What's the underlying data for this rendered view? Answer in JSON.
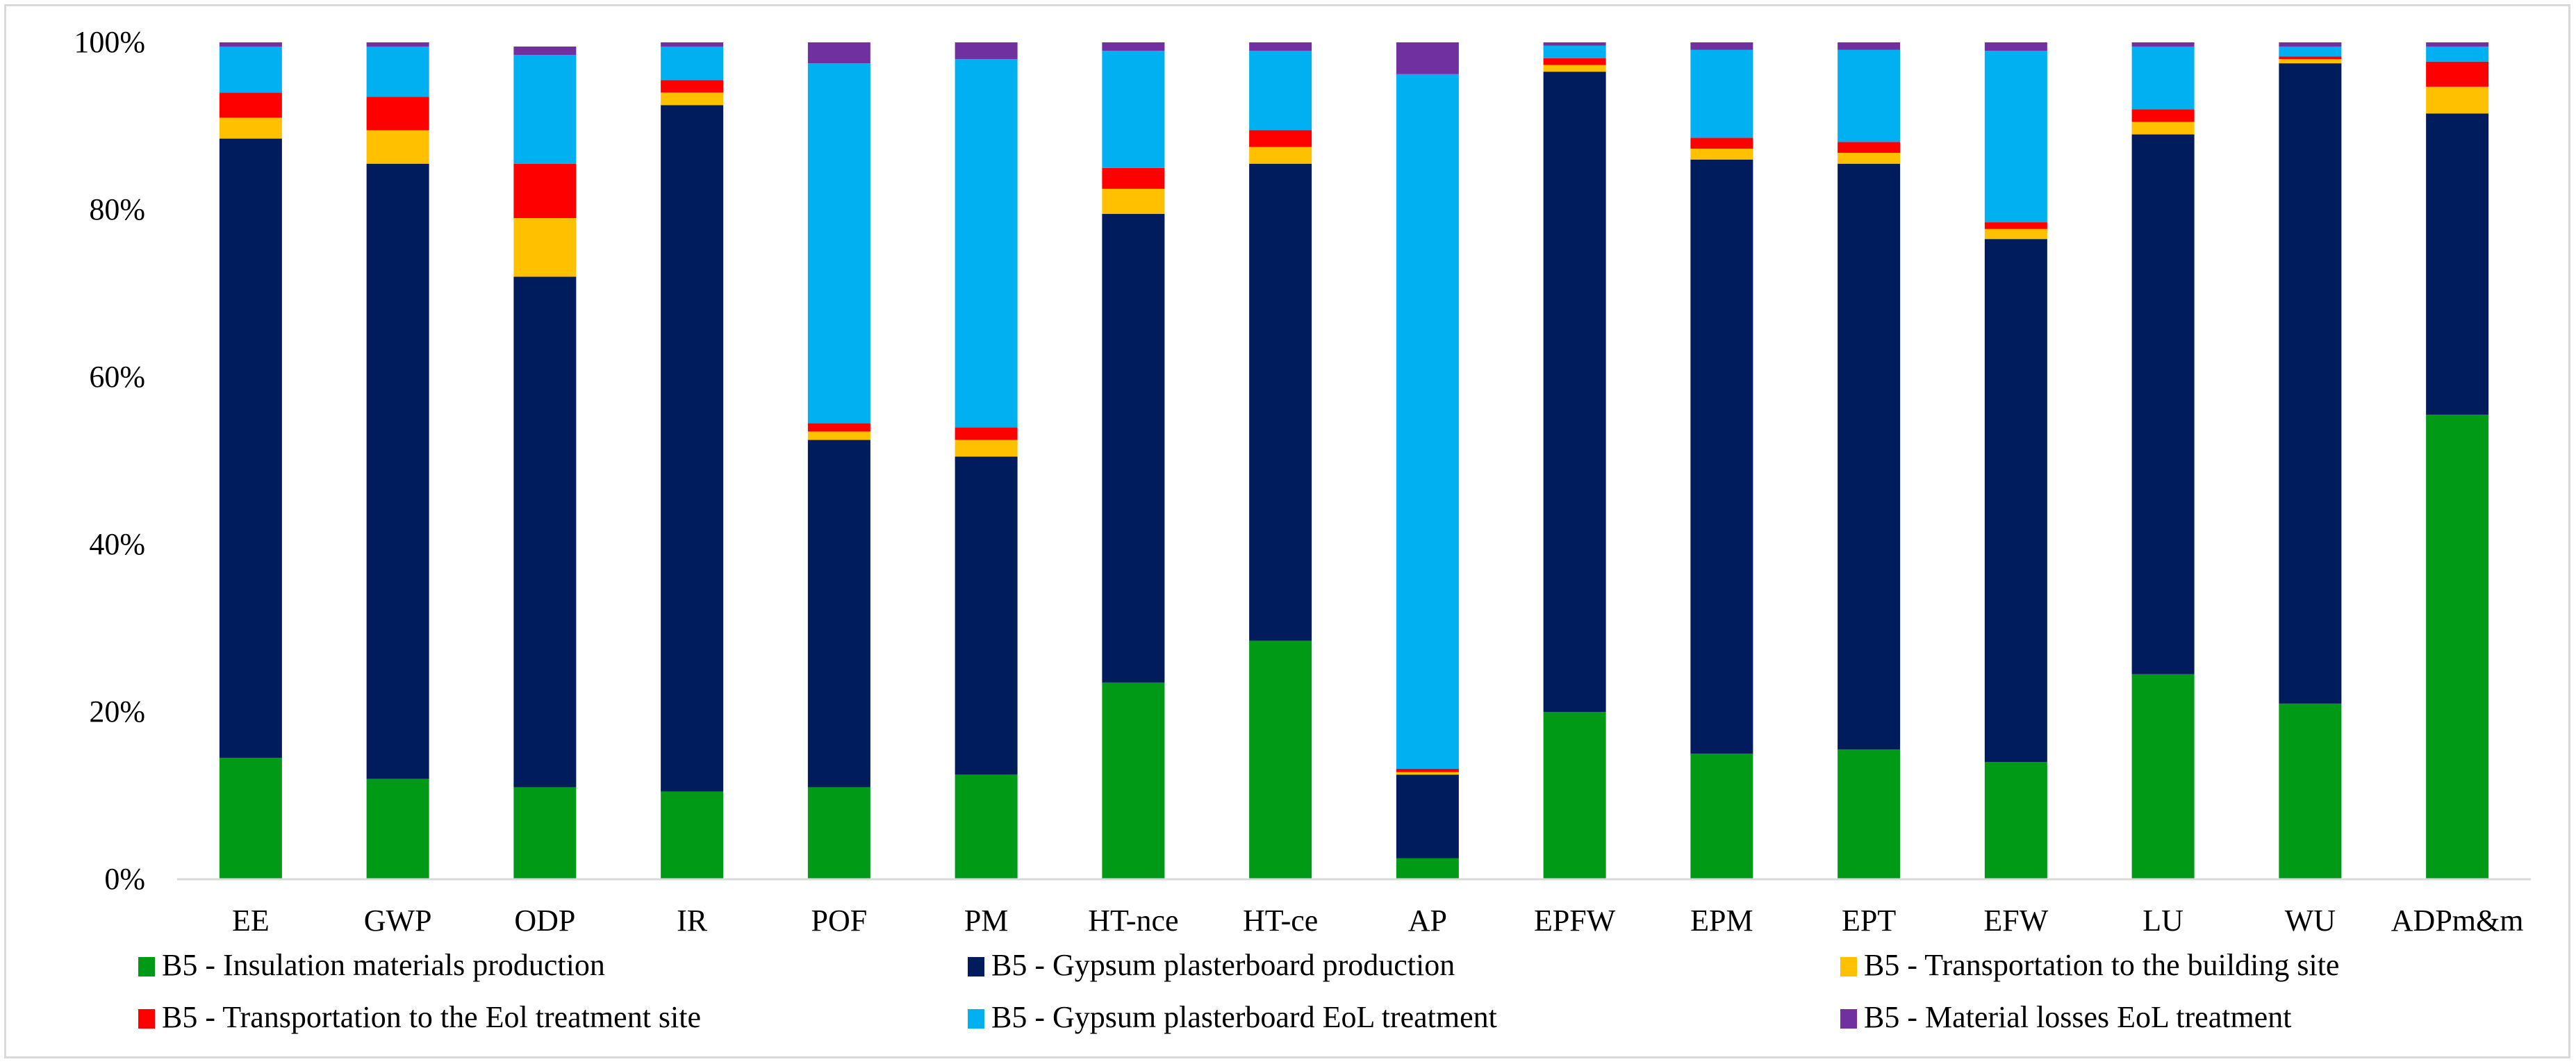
{
  "chart_data": {
    "type": "bar",
    "stacked": true,
    "title": "",
    "xlabel": "",
    "ylabel": "",
    "ylim": [
      0,
      100
    ],
    "y_ticks": [
      "0%",
      "20%",
      "40%",
      "60%",
      "80%",
      "100%"
    ],
    "y_tick_values": [
      0,
      20,
      40,
      60,
      80,
      100
    ],
    "grid": false,
    "legend_position": "bottom",
    "categories": [
      "EE",
      "GWP",
      "ODP",
      "IR",
      "POF",
      "PM",
      "HT-nce",
      "HT-ce",
      "AP",
      "EPFW",
      "EPM",
      "EPT",
      "EFW",
      "LU",
      "WU",
      "ADPm&m"
    ],
    "series": [
      {
        "name": "B5 - Insulation materials production",
        "color": "#009a17",
        "values": [
          14.5,
          12.0,
          11.0,
          10.5,
          11.0,
          12.5,
          23.5,
          28.5,
          2.5,
          20.0,
          15.0,
          15.5,
          14.0,
          24.5,
          21.0,
          55.5
        ]
      },
      {
        "name": "B5 - Gypsum plasterboard production",
        "color": "#001c5c",
        "values": [
          74.0,
          73.5,
          61.0,
          82.0,
          41.5,
          38.0,
          56.0,
          57.0,
          10.0,
          76.5,
          71.0,
          70.0,
          62.5,
          64.5,
          76.5,
          36.0
        ]
      },
      {
        "name": "B5 - Transportation to the building site",
        "color": "#ffc000",
        "values": [
          2.5,
          4.0,
          7.0,
          1.5,
          1.0,
          2.0,
          3.0,
          2.0,
          0.3,
          0.8,
          1.3,
          1.3,
          1.2,
          1.5,
          0.5,
          3.2
        ]
      },
      {
        "name": "B5 - Transportation to the Eol treatment site",
        "color": "#ff0000",
        "values": [
          3.0,
          4.0,
          6.5,
          1.5,
          1.0,
          1.5,
          2.5,
          2.0,
          0.4,
          0.8,
          1.3,
          1.3,
          0.8,
          1.5,
          0.3,
          3.0
        ]
      },
      {
        "name": "B5 - Gypsum plasterboard EoL treatment",
        "color": "#00b0f0",
        "values": [
          5.5,
          6.0,
          13.0,
          4.0,
          43.0,
          44.0,
          14.0,
          9.5,
          83.0,
          1.5,
          10.5,
          11.0,
          20.5,
          7.5,
          1.2,
          1.8
        ]
      },
      {
        "name": "B5 - Material losses EoL treatment",
        "color": "#7030a0",
        "values": [
          0.5,
          0.5,
          1.0,
          0.5,
          2.5,
          2.0,
          1.0,
          1.0,
          3.8,
          0.4,
          0.9,
          0.9,
          1.0,
          0.5,
          0.5,
          0.5
        ]
      }
    ]
  }
}
